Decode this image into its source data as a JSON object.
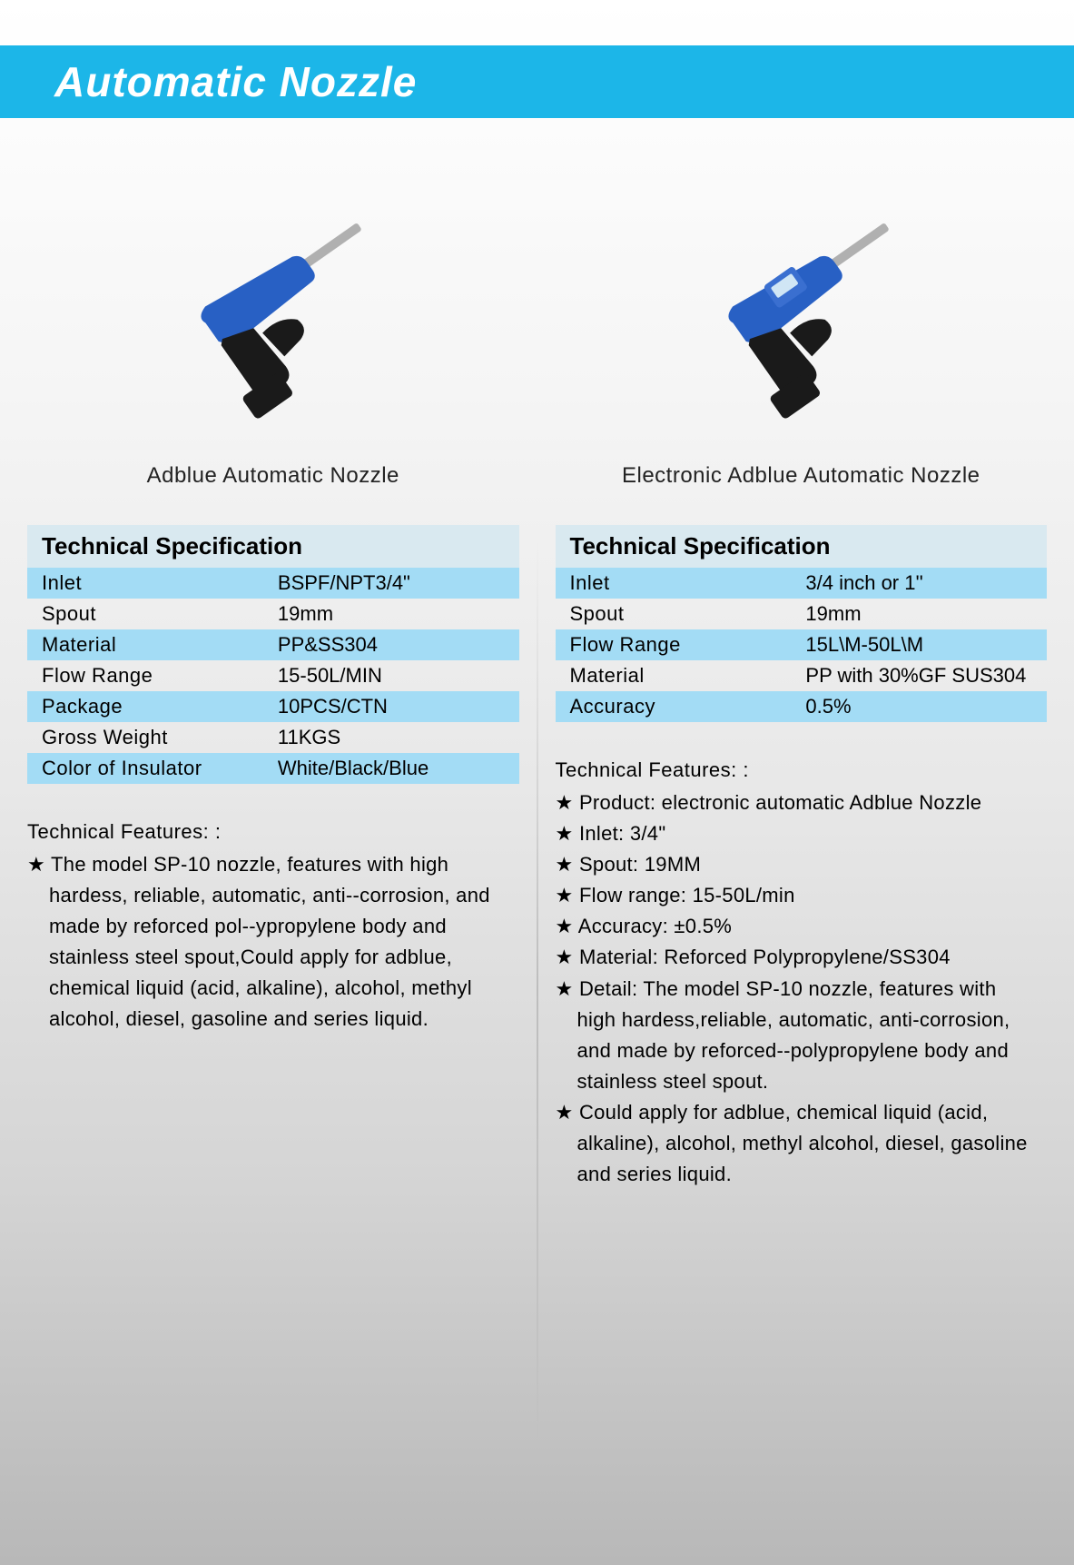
{
  "header": {
    "title": "Automatic Nozzle",
    "bar_color": "#1cb6e8",
    "title_color": "#ffffff"
  },
  "colors": {
    "table_header_bg": "#d9e9f0",
    "row_alt_bg": "#a3dcf5",
    "row_bg": "transparent",
    "text": "#222222",
    "nozzle_body": "#2860c4",
    "nozzle_handle": "#1a1a1a",
    "nozzle_spout": "#b0b0b0"
  },
  "left": {
    "product_title": "Adblue Automatic Nozzle",
    "spec_heading": "Technical Specification",
    "specs": [
      {
        "label": "Inlet",
        "value": "BSPF/NPT3/4\""
      },
      {
        "label": "Spout",
        "value": "19mm"
      },
      {
        "label": "Material",
        "value": "PP&SS304"
      },
      {
        "label": "Flow Range",
        "value": "15-50L/MIN"
      },
      {
        "label": "Package",
        "value": "10PCS/CTN"
      },
      {
        "label": "Gross Weight",
        "value": "11KGS"
      },
      {
        "label": "Color of Insulator",
        "value": "White/Black/Blue"
      }
    ],
    "features_title": "Technical Features: :",
    "features": [
      "The model SP-10 nozzle, features with high hardess, reliable, automatic, anti--corrosion, and made by reforced pol--ypropylene body and stainless steel spout,Could apply for adblue, chemical liquid (acid, alkaline), alcohol, methyl alcohol, diesel, gasoline and series liquid."
    ]
  },
  "right": {
    "product_title": "Electronic Adblue Automatic Nozzle",
    "spec_heading": "Technical Specification",
    "specs": [
      {
        "label": "Inlet",
        "value": "3/4 inch or 1''"
      },
      {
        "label": "Spout",
        "value": "19mm"
      },
      {
        "label": "Flow Range",
        "value": "15L\\M-50L\\M"
      },
      {
        "label": "Material",
        "value": "PP with 30%GF SUS304"
      },
      {
        "label": "Accuracy",
        "value": "0.5%"
      }
    ],
    "features_title": "Technical Features: :",
    "features": [
      "Product: electronic automatic Adblue Nozzle",
      "Inlet: 3/4\"",
      "Spout: 19MM",
      "Flow range: 15-50L/min",
      "Accuracy: ±0.5%",
      "Material: Reforced Polypropylene/SS304",
      "Detail: The model SP-10 nozzle, features with high hardess,reliable, automatic, anti-corrosion, and made by reforced--polypropylene body and stainless steel spout.",
      "Could apply for adblue, chemical liquid (acid, alkaline), alcohol, methyl alcohol, diesel, gasoline and series liquid."
    ]
  }
}
